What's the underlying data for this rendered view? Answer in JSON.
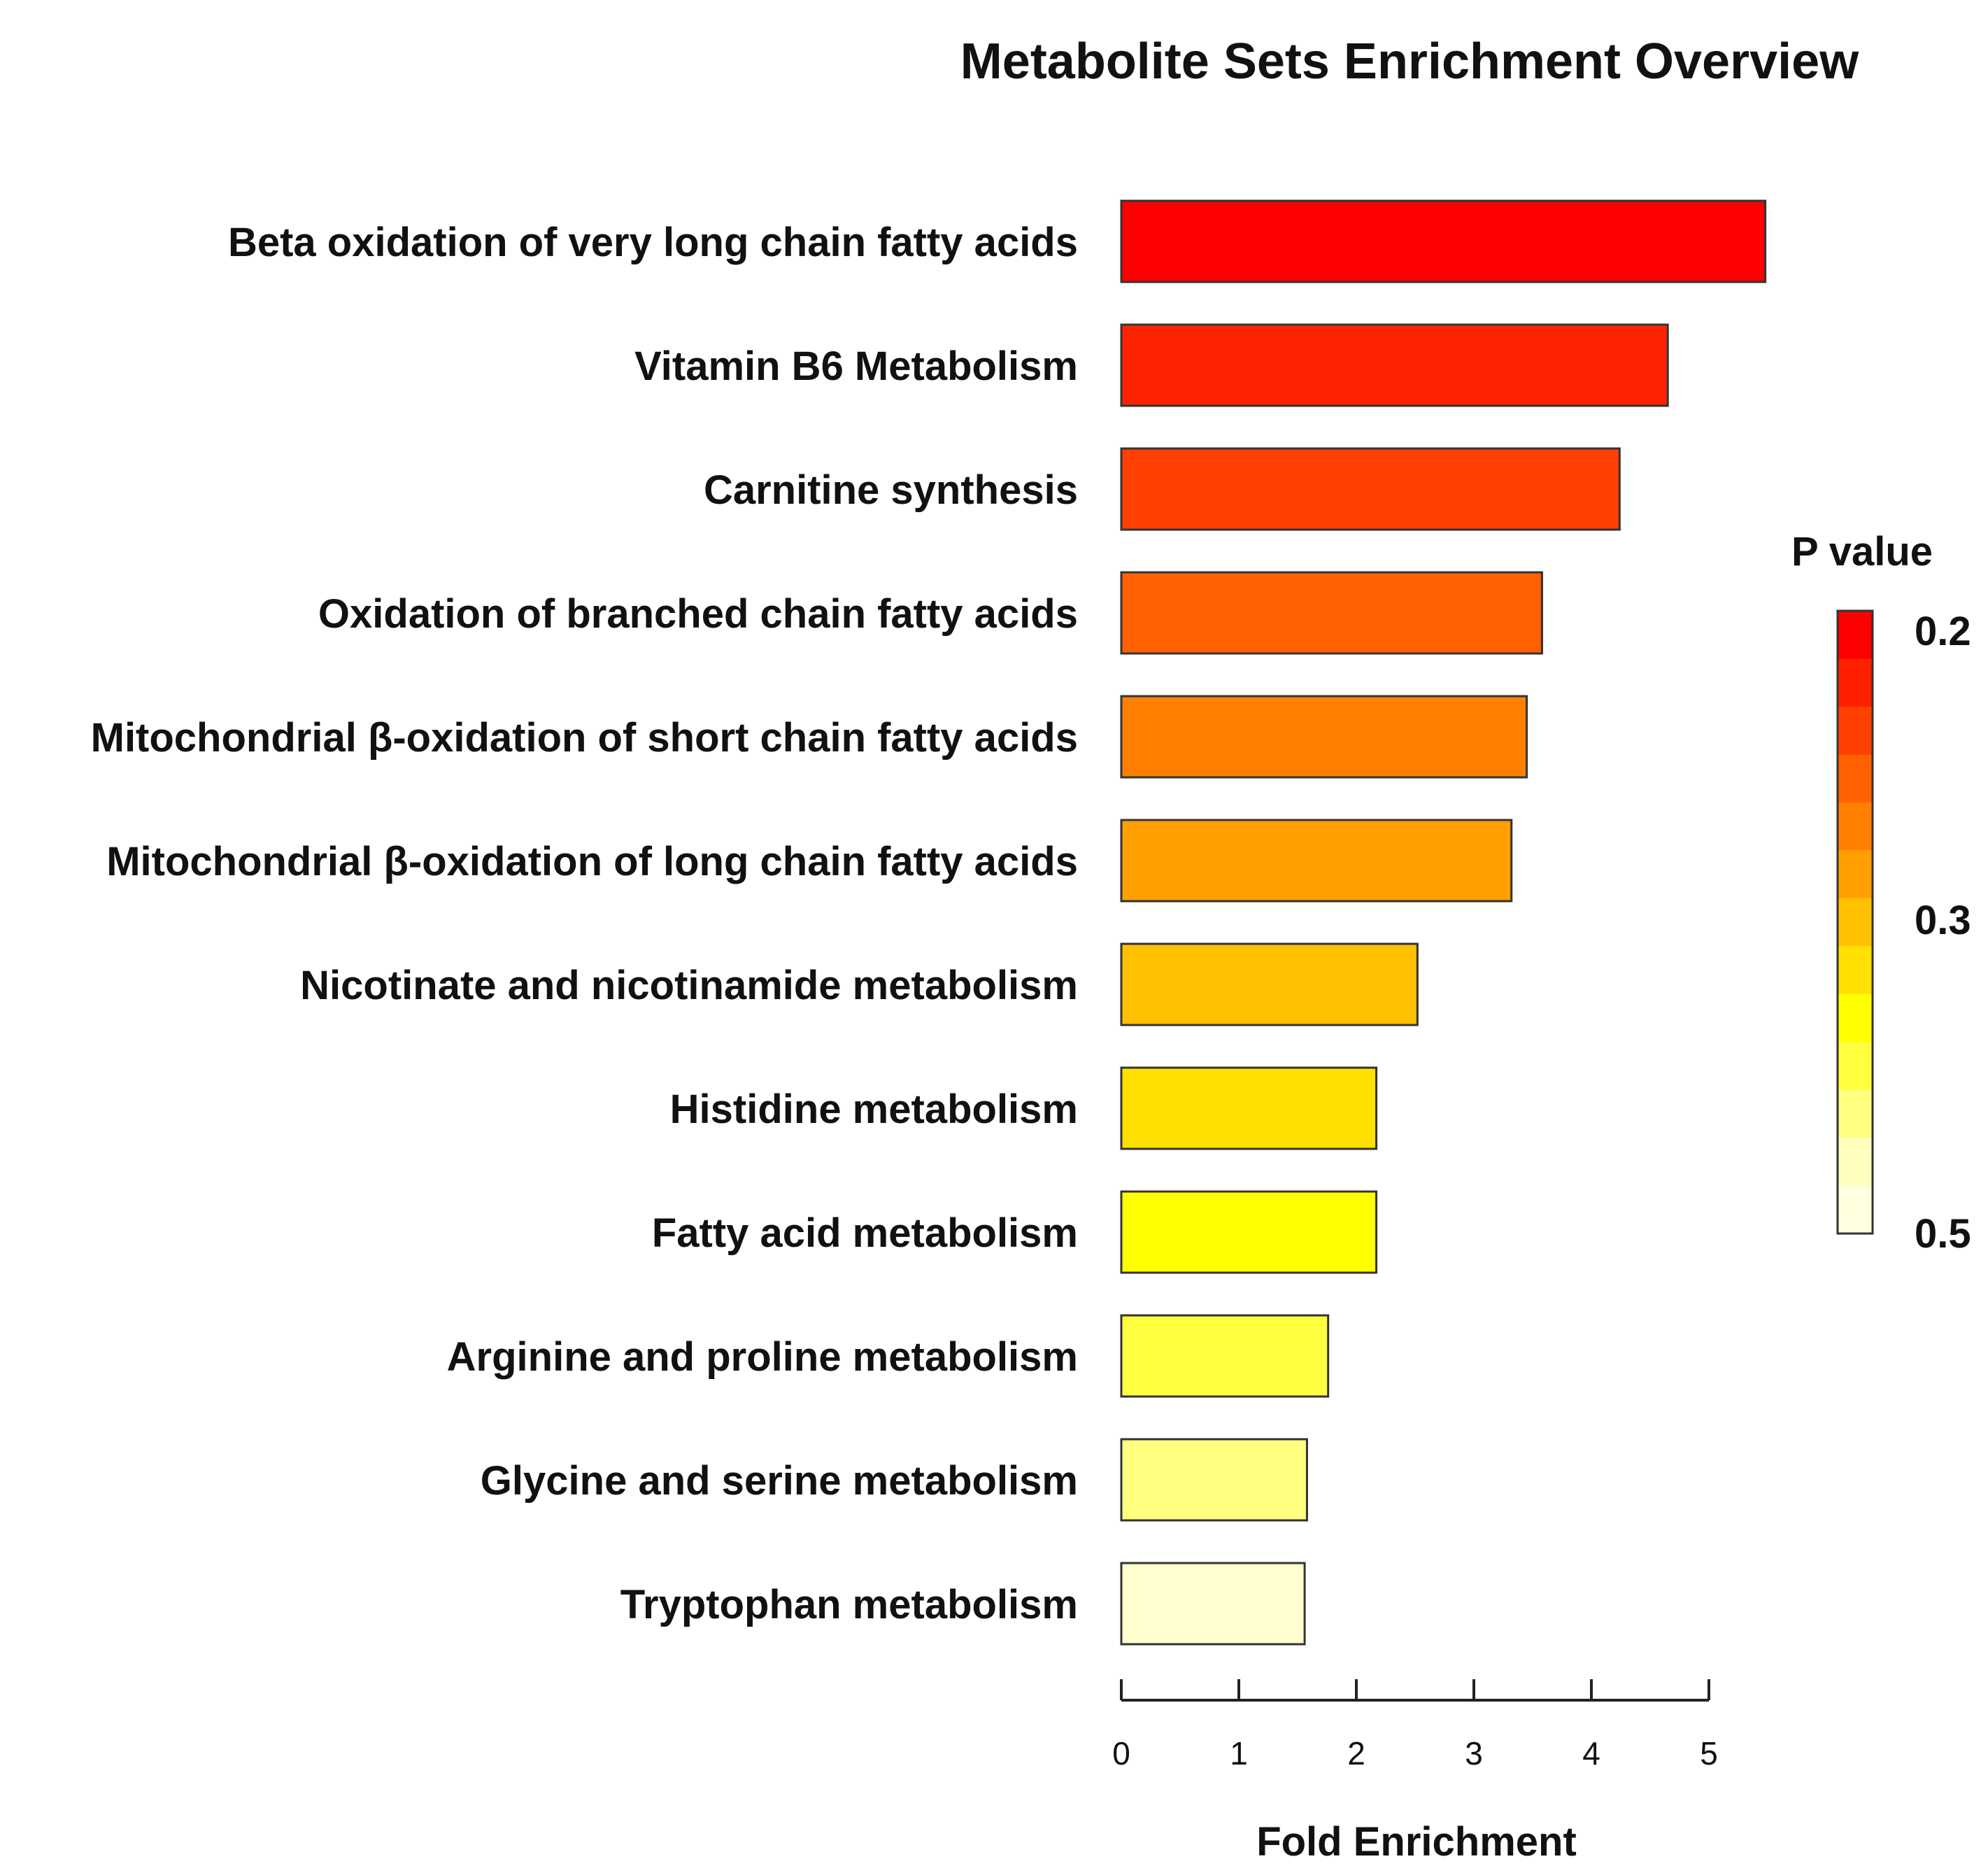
{
  "chart_data": {
    "type": "bar",
    "orientation": "horizontal",
    "title": "Metabolite Sets Enrichment Overview",
    "xlabel": "Fold Enrichment",
    "ylabel": "",
    "xlim": [
      0,
      5
    ],
    "xticks": [
      0,
      1,
      2,
      3,
      4,
      5
    ],
    "categories": [
      "Beta oxidation of very long chain fatty acids",
      "Vitamin B6 Metabolism",
      "Carnitine synthesis",
      "Oxidation of branched chain fatty acids",
      "Mitochondrial β-oxidation of short chain fatty acids",
      "Mitochondrial β-oxidation of long chain fatty acids",
      "Nicotinate and nicotinamide metabolism",
      "Histidine metabolism",
      "Fatty acid metabolism",
      "Arginine and proline metabolism",
      "Glycine and serine metabolism",
      "Tryptophan metabolism"
    ],
    "values": [
      5.48,
      4.65,
      4.24,
      3.58,
      3.45,
      3.32,
      2.52,
      2.17,
      2.17,
      1.76,
      1.58,
      1.56
    ],
    "colors": [
      "#ff0000",
      "#ff2200",
      "#ff4000",
      "#ff6000",
      "#ff8000",
      "#ff9f00",
      "#ffc000",
      "#ffe000",
      "#ffff00",
      "#ffff40",
      "#ffff80",
      "#ffffd0"
    ],
    "grid": false,
    "legend": {
      "title": "P value",
      "placement": "right",
      "ticks": [
        "0.2",
        "0.3",
        "0.5"
      ],
      "gradient": [
        "#ff0000",
        "#ff2000",
        "#ff4000",
        "#ff6000",
        "#ff8000",
        "#ffa000",
        "#ffc000",
        "#ffe000",
        "#ffff00",
        "#ffff40",
        "#ffff80",
        "#ffffc0",
        "#ffffe0"
      ]
    }
  }
}
